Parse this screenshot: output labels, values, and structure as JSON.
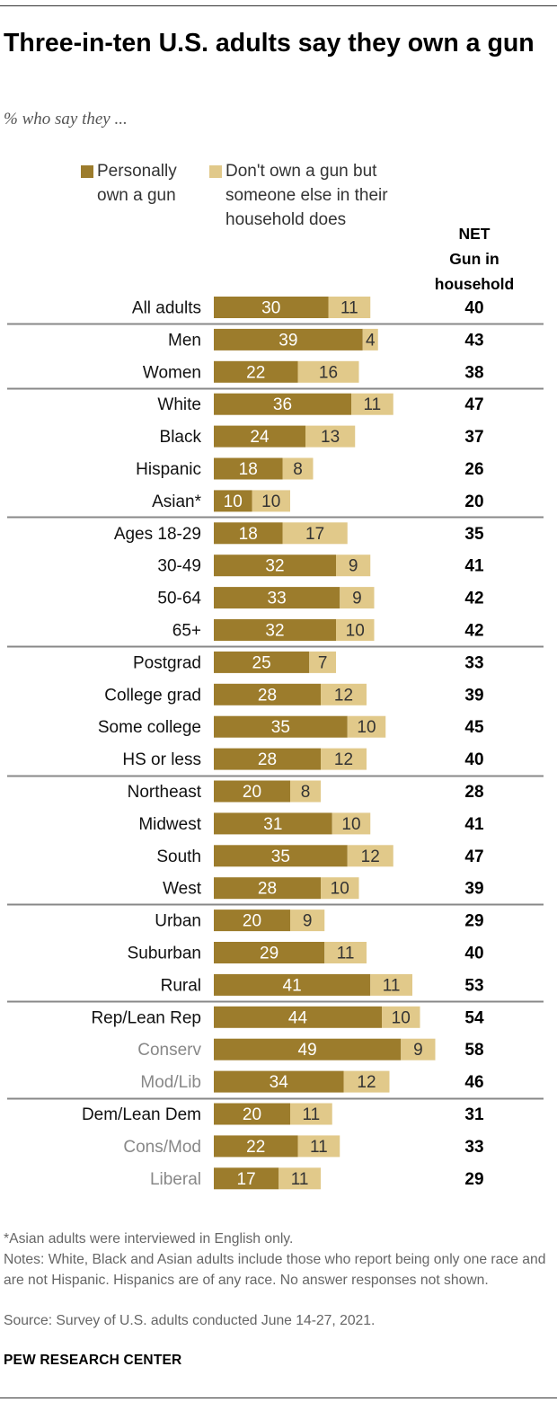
{
  "title": "Three-in-ten U.S. adults say they own a gun",
  "subtitle": "% who say they ...",
  "legend": {
    "own": "Personally\nown a gun",
    "other": "Don't own a gun but\nsomeone else in their\nhousehold does"
  },
  "net_header": "NET\nGun in\nhousehold",
  "colors": {
    "own": "#9c7c2c",
    "other": "#e1c98a",
    "label_main": "#111111",
    "label_sub": "#888888",
    "separator": "#888888"
  },
  "chart_data": {
    "type": "bar",
    "orientation": "horizontal",
    "stacked": true,
    "title": "Three-in-ten U.S. adults say they own a gun",
    "series": [
      {
        "name": "Personally own a gun",
        "values": [
          30,
          39,
          22,
          36,
          24,
          18,
          10,
          18,
          32,
          33,
          32,
          25,
          28,
          35,
          28,
          20,
          31,
          35,
          28,
          20,
          29,
          41,
          44,
          49,
          34,
          20,
          22,
          17
        ]
      },
      {
        "name": "Don't own a gun but someone else in their household does",
        "values": [
          11,
          4,
          16,
          11,
          13,
          8,
          10,
          17,
          9,
          9,
          10,
          7,
          12,
          10,
          12,
          8,
          10,
          12,
          10,
          9,
          11,
          11,
          10,
          9,
          12,
          11,
          11,
          11
        ]
      },
      {
        "name": "NET Gun in household",
        "values": [
          40,
          43,
          38,
          47,
          37,
          26,
          20,
          35,
          41,
          42,
          42,
          33,
          39,
          45,
          40,
          28,
          41,
          47,
          39,
          29,
          40,
          53,
          54,
          58,
          46,
          31,
          33,
          29
        ]
      }
    ],
    "categories": [
      "All adults",
      "Men",
      "Women",
      "White",
      "Black",
      "Hispanic",
      "Asian*",
      "Ages 18-29",
      "30-49",
      "50-64",
      "65+",
      "Postgrad",
      "College grad",
      "Some college",
      "HS or less",
      "Northeast",
      "Midwest",
      "South",
      "West",
      "Urban",
      "Suburban",
      "Rural",
      "Rep/Lean Rep",
      "Conserv",
      "Mod/Lib",
      "Dem/Lean Dem",
      "Cons/Mod",
      "Liberal"
    ],
    "subgroup_categories": [
      "Conserv",
      "Mod/Lib",
      "Cons/Mod",
      "Liberal"
    ],
    "group_break_before": [
      "Men",
      "White",
      "Ages 18-29",
      "Postgrad",
      "Northeast",
      "Urban",
      "Rep/Lean Rep",
      "Dem/Lean Dem"
    ]
  },
  "footnotes": [
    "*Asian adults were interviewed in English only.",
    "Notes: White, Black and Asian adults include those who report being only one race and are not Hispanic. Hispanics are of any race. No answer responses not shown.",
    "Source: Survey of U.S. adults conducted June 14-27, 2021."
  ],
  "brand": "PEW RESEARCH CENTER"
}
